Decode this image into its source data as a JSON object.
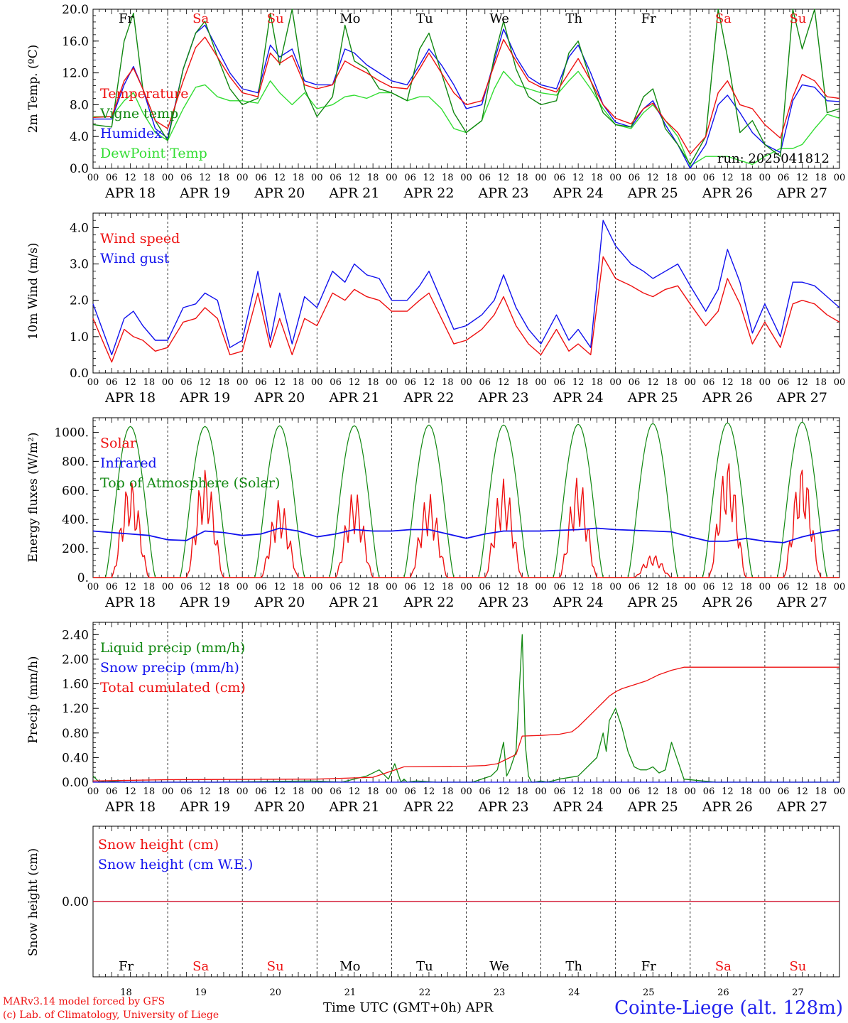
{
  "days": [
    {
      "abbr": "Fr",
      "date": "APR 18",
      "num": "18",
      "weekend": false
    },
    {
      "abbr": "Sa",
      "date": "APR 19",
      "num": "19",
      "weekend": true
    },
    {
      "abbr": "Su",
      "date": "APR 20",
      "num": "20",
      "weekend": true
    },
    {
      "abbr": "Mo",
      "date": "APR 21",
      "num": "21",
      "weekend": false
    },
    {
      "abbr": "Tu",
      "date": "APR 22",
      "num": "22",
      "weekend": false
    },
    {
      "abbr": "We",
      "date": "APR 23",
      "num": "23",
      "weekend": false
    },
    {
      "abbr": "Th",
      "date": "APR 24",
      "num": "24",
      "weekend": false
    },
    {
      "abbr": "Fr",
      "date": "APR 25",
      "num": "25",
      "weekend": false
    },
    {
      "abbr": "Sa",
      "date": "APR 26",
      "num": "26",
      "weekend": true
    },
    {
      "abbr": "Su",
      "date": "APR 27",
      "num": "27",
      "weekend": true
    }
  ],
  "hour_labels": [
    "00",
    "06",
    "12",
    "18"
  ],
  "final_hour_label": "00",
  "footer": {
    "model": "MARv3.14 model forced by GFS",
    "copyright": "(c) Lab. of Climatology, University of Liege",
    "time_axis": "Time UTC (GMT+0h) APR",
    "station": "Cointe-Liege (alt. 128m)"
  },
  "colors": {
    "red": "#ee1111",
    "dark_green": "#118811",
    "blue": "#1111ee",
    "light_green": "#33dd33",
    "weekend_label": "#ee1111"
  },
  "chart_data": [
    {
      "type": "line",
      "ylabel": "2m Temp. (ºC)",
      "ylim": [
        0,
        20
      ],
      "yticks": [
        "0.0",
        "4.0",
        "8.0",
        "12.0",
        "16.0",
        "20.0"
      ],
      "ytick_values": [
        0,
        4,
        8,
        12,
        16,
        20
      ],
      "annotation": "run: 2025041812",
      "x_hours": [
        0,
        6,
        10,
        13,
        16,
        20,
        24,
        29,
        33,
        36,
        40,
        44,
        48,
        53,
        57,
        60,
        64,
        68,
        72,
        77,
        81,
        84,
        88,
        92,
        96,
        101,
        105,
        108,
        112,
        116,
        120,
        125,
        129,
        132,
        136,
        140,
        144,
        149,
        153,
        156,
        160,
        164,
        168,
        173,
        177,
        180,
        184,
        188,
        192,
        197,
        201,
        204,
        208,
        212,
        216,
        221,
        225,
        228,
        232,
        236,
        240
      ],
      "series": [
        {
          "name": "Temperature",
          "color": "#ee1111",
          "values": [
            6.4,
            6.5,
            11.0,
            12.6,
            10.0,
            6.0,
            5.0,
            11.0,
            15.2,
            16.5,
            14.0,
            11.5,
            9.5,
            9.0,
            14.5,
            13.2,
            14.2,
            10.5,
            10.0,
            10.5,
            13.5,
            12.8,
            12.0,
            11.0,
            10.2,
            10.0,
            12.5,
            14.5,
            12.0,
            9.5,
            8.0,
            8.5,
            13.0,
            16.2,
            13.5,
            11.0,
            10.2,
            9.6,
            12.0,
            13.8,
            11.0,
            8.0,
            6.3,
            5.6,
            7.5,
            8.2,
            6.0,
            4.5,
            1.8,
            4.0,
            9.5,
            11.0,
            8.0,
            7.5,
            5.5,
            3.8,
            9.0,
            11.8,
            11.0,
            9.0,
            8.8
          ]
        },
        {
          "name": "Vigne temp",
          "color": "#118811",
          "values": [
            5.5,
            5.2,
            16.0,
            19.5,
            10.0,
            6.0,
            3.5,
            12.5,
            17.0,
            18.5,
            14.0,
            10.0,
            8.0,
            8.8,
            19.5,
            13.0,
            20.0,
            10.0,
            6.5,
            9.0,
            18.0,
            13.5,
            12.5,
            10.0,
            9.5,
            8.5,
            15.0,
            17.0,
            12.0,
            7.0,
            4.5,
            6.0,
            14.0,
            18.5,
            12.5,
            9.0,
            8.0,
            8.5,
            14.5,
            16.0,
            11.0,
            7.0,
            5.5,
            5.2,
            9.0,
            10.0,
            5.0,
            3.0,
            0.5,
            4.0,
            20.0,
            14.0,
            4.5,
            6.0,
            3.0,
            1.5,
            20.0,
            15.0,
            20.0,
            7.0,
            7.5
          ]
        },
        {
          "name": "Humidex",
          "color": "#1111ee",
          "values": [
            6.2,
            6.2,
            10.5,
            12.8,
            10.0,
            5.0,
            3.8,
            12.5,
            17.0,
            18.0,
            15.0,
            12.0,
            10.0,
            9.5,
            15.5,
            14.0,
            15.0,
            11.0,
            10.5,
            10.5,
            15.0,
            14.5,
            13.0,
            12.0,
            11.0,
            10.5,
            13.0,
            15.0,
            13.0,
            10.5,
            7.5,
            8.0,
            13.5,
            17.5,
            14.0,
            11.5,
            10.5,
            10.0,
            14.0,
            15.5,
            12.0,
            8.0,
            5.8,
            5.2,
            7.5,
            8.5,
            5.5,
            3.0,
            0.0,
            3.0,
            8.0,
            9.2,
            7.0,
            4.5,
            3.0,
            2.0,
            8.5,
            10.5,
            10.2,
            8.5,
            8.4
          ]
        },
        {
          "name": "DewPoint Temp",
          "color": "#33dd33",
          "values": [
            6.5,
            6.5,
            8.5,
            9.5,
            7.0,
            4.5,
            3.5,
            7.5,
            10.2,
            10.5,
            9.0,
            8.5,
            8.5,
            8.2,
            11.0,
            9.5,
            8.0,
            9.5,
            7.5,
            8.0,
            9.0,
            9.2,
            8.8,
            9.5,
            9.5,
            8.5,
            9.0,
            9.0,
            7.5,
            5.0,
            4.5,
            6.0,
            10.0,
            12.2,
            10.5,
            10.0,
            9.5,
            9.2,
            11.0,
            12.2,
            10.0,
            7.5,
            5.5,
            5.0,
            7.0,
            8.0,
            6.0,
            4.0,
            0.3,
            1.5,
            1.5,
            1.5,
            1.0,
            0.5,
            1.5,
            2.5,
            2.5,
            3.0,
            5.0,
            6.8,
            6.3
          ]
        }
      ]
    },
    {
      "type": "line",
      "ylabel": "10m Wind (m/s)",
      "ylim": [
        0,
        4.4
      ],
      "yticks": [
        "0.0",
        "1.0",
        "2.0",
        "3.0",
        "4.0"
      ],
      "ytick_values": [
        0,
        1,
        2,
        3,
        4
      ],
      "x_hours": [
        0,
        6,
        10,
        13,
        16,
        20,
        24,
        29,
        33,
        36,
        40,
        44,
        48,
        53,
        57,
        60,
        64,
        68,
        72,
        77,
        81,
        84,
        88,
        92,
        96,
        101,
        105,
        108,
        112,
        116,
        120,
        125,
        129,
        132,
        136,
        140,
        144,
        149,
        153,
        156,
        160,
        164,
        168,
        173,
        177,
        180,
        184,
        188,
        192,
        197,
        201,
        204,
        208,
        212,
        216,
        221,
        225,
        228,
        232,
        236,
        240
      ],
      "series": [
        {
          "name": "Wind speed",
          "color": "#ee1111",
          "values": [
            1.5,
            0.3,
            1.2,
            1.0,
            0.9,
            0.6,
            0.7,
            1.4,
            1.5,
            1.8,
            1.5,
            0.5,
            0.6,
            2.2,
            0.7,
            1.5,
            0.5,
            1.5,
            1.3,
            2.2,
            2.0,
            2.3,
            2.1,
            2.0,
            1.7,
            1.7,
            2.0,
            2.2,
            1.5,
            0.8,
            0.9,
            1.2,
            1.6,
            2.1,
            1.3,
            0.8,
            0.5,
            1.2,
            0.6,
            0.8,
            0.5,
            3.2,
            2.6,
            2.4,
            2.2,
            2.1,
            2.3,
            2.4,
            1.9,
            1.3,
            1.7,
            2.6,
            1.9,
            0.8,
            1.4,
            0.7,
            1.9,
            2.0,
            1.9,
            1.6,
            1.4
          ]
        },
        {
          "name": "Wind gust",
          "color": "#1111ee",
          "values": [
            1.9,
            0.5,
            1.5,
            1.7,
            1.3,
            0.9,
            0.9,
            1.8,
            1.9,
            2.2,
            2.0,
            0.7,
            0.9,
            2.8,
            0.9,
            2.2,
            0.8,
            2.1,
            1.8,
            2.8,
            2.5,
            3.0,
            2.7,
            2.6,
            2.0,
            2.0,
            2.4,
            2.8,
            2.0,
            1.2,
            1.3,
            1.6,
            2.0,
            2.7,
            1.8,
            1.2,
            0.8,
            1.6,
            0.9,
            1.2,
            0.7,
            4.2,
            3.5,
            3.0,
            2.8,
            2.6,
            2.8,
            3.0,
            2.4,
            1.7,
            2.3,
            3.4,
            2.5,
            1.1,
            1.9,
            1.0,
            2.5,
            2.5,
            2.4,
            2.1,
            1.8
          ]
        }
      ]
    },
    {
      "type": "line",
      "ylabel": "Energy fluxes (W/m²)",
      "ylim": [
        0,
        1100
      ],
      "yticks": [
        "0.",
        "200.",
        "400.",
        "600.",
        "800.",
        "1000."
      ],
      "ytick_values": [
        0,
        200,
        400,
        600,
        800,
        1000
      ],
      "daily_toa_peak": [
        1040,
        1040,
        1045,
        1045,
        1050,
        1050,
        1055,
        1060,
        1065,
        1070
      ],
      "solar_daily_peak": [
        680,
        750,
        540,
        600,
        580,
        680,
        700,
        160,
        820,
        780
      ],
      "series": [
        {
          "name": "Solar",
          "color": "#ee1111"
        },
        {
          "name": "Infrared",
          "color": "#1111ee",
          "x_hours": [
            0,
            6,
            12,
            18,
            24,
            30,
            36,
            42,
            48,
            54,
            60,
            66,
            72,
            78,
            84,
            90,
            96,
            102,
            108,
            114,
            120,
            126,
            132,
            138,
            144,
            150,
            156,
            162,
            168,
            174,
            180,
            186,
            192,
            198,
            204,
            210,
            216,
            222,
            228,
            234,
            240
          ],
          "values": [
            320,
            310,
            300,
            290,
            260,
            255,
            320,
            310,
            290,
            300,
            340,
            320,
            280,
            300,
            330,
            320,
            320,
            330,
            330,
            300,
            270,
            300,
            320,
            320,
            320,
            325,
            330,
            340,
            330,
            325,
            320,
            315,
            280,
            250,
            250,
            270,
            250,
            240,
            280,
            310,
            330
          ]
        },
        {
          "name": "Top of Atmosphere (Solar)",
          "color": "#118811"
        }
      ]
    },
    {
      "type": "line",
      "ylabel": "Precip (mm/h)",
      "ylim": [
        0,
        2.6
      ],
      "yticks": [
        "0.00",
        "0.40",
        "0.80",
        "1.20",
        "1.60",
        "2.00",
        "2.40"
      ],
      "ytick_values": [
        0,
        0.4,
        0.8,
        1.2,
        1.6,
        2.0,
        2.4
      ],
      "series": [
        {
          "name": "Liquid precip (mm/h)",
          "color": "#118811",
          "x_hours": [
            0,
            2,
            4,
            10,
            20,
            40,
            70,
            80,
            88,
            92,
            95,
            97,
            99,
            100,
            101,
            104,
            110,
            116,
            122,
            128,
            130,
            132,
            133,
            134,
            136,
            138,
            139,
            140,
            141,
            142,
            144,
            146,
            150,
            156,
            162,
            164,
            165,
            166,
            168,
            170,
            172,
            174,
            176,
            178,
            180,
            182,
            184,
            186,
            190,
            200,
            240
          ],
          "values": [
            0.1,
            0.0,
            0.02,
            0.0,
            0.0,
            0.0,
            0.02,
            0.0,
            0.1,
            0.2,
            0.05,
            0.3,
            0.0,
            0.05,
            0.0,
            0.02,
            0.0,
            0.0,
            0.0,
            0.1,
            0.2,
            0.65,
            0.1,
            0.2,
            0.5,
            2.4,
            0.6,
            0.1,
            0.0,
            0.0,
            0.02,
            0.0,
            0.05,
            0.1,
            0.4,
            0.8,
            0.5,
            1.0,
            1.2,
            0.9,
            0.5,
            0.25,
            0.2,
            0.2,
            0.25,
            0.15,
            0.2,
            0.65,
            0.05,
            0.0,
            0.0
          ]
        },
        {
          "name": "Snow precip (mm/h)",
          "color": "#1111ee",
          "x_hours": [
            0,
            240
          ],
          "values": [
            0.0,
            0.0
          ]
        },
        {
          "name": "Total cumulated (cm)",
          "color": "#ee1111",
          "x_hours": [
            0,
            24,
            72,
            90,
            96,
            100,
            120,
            126,
            130,
            134,
            136,
            138,
            144,
            150,
            154,
            156,
            158,
            160,
            162,
            164,
            166,
            168,
            170,
            178,
            182,
            186,
            190,
            240
          ],
          "values": [
            0.02,
            0.04,
            0.05,
            0.08,
            0.18,
            0.25,
            0.26,
            0.27,
            0.3,
            0.4,
            0.45,
            0.75,
            0.76,
            0.78,
            0.82,
            0.9,
            1.0,
            1.1,
            1.2,
            1.3,
            1.4,
            1.47,
            1.52,
            1.65,
            1.75,
            1.82,
            1.87,
            1.87
          ]
        }
      ]
    },
    {
      "type": "line",
      "ylabel": "Snow height (cm)",
      "ylim": [
        -1,
        1
      ],
      "yticks": [
        "0.00"
      ],
      "ytick_values": [
        0
      ],
      "series": [
        {
          "name": "Snow height (cm)",
          "color": "#ee1111",
          "x_hours": [
            0,
            240
          ],
          "values": [
            0,
            0
          ]
        },
        {
          "name": "Snow height (cm W.E.)",
          "color": "#1111ee",
          "x_hours": [
            0,
            240
          ],
          "values": [
            0,
            0
          ]
        }
      ]
    }
  ]
}
